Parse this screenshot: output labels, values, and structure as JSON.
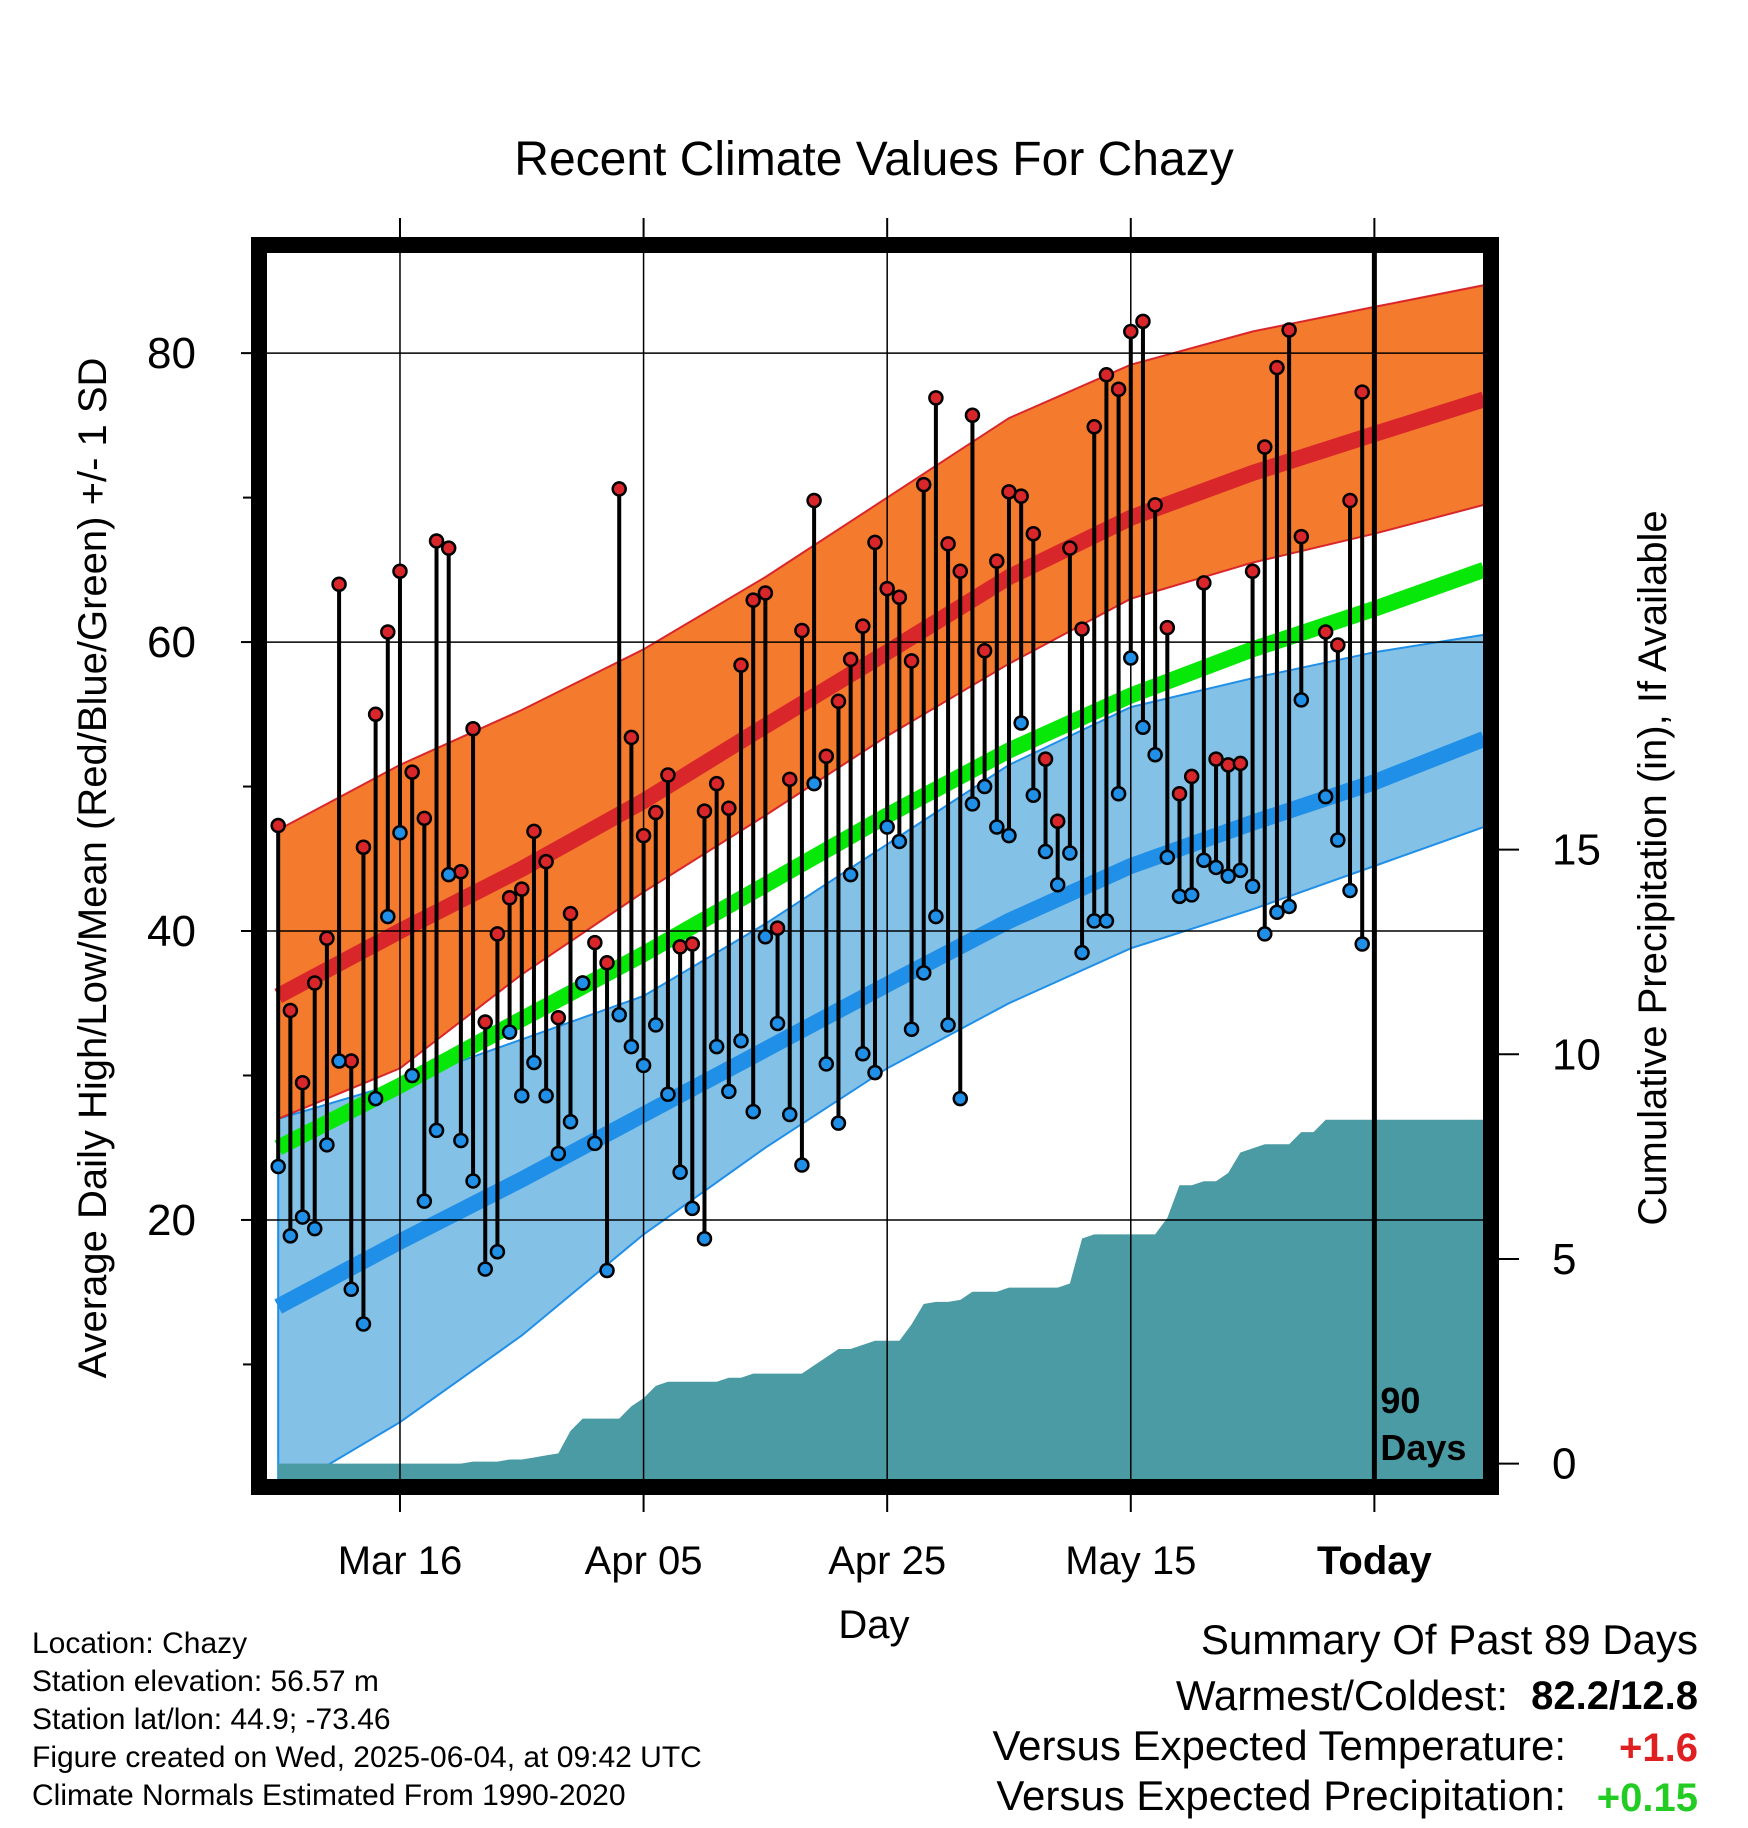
{
  "colors": {
    "high_band": "#f47a2e",
    "high_band_edge": "#d9262a",
    "high_mean": "#d9262a",
    "low_band": "#84c1e6",
    "low_band_edge": "#1f8fe8",
    "low_mean": "#1f8fe8",
    "mean": "#08e808",
    "precip": "#4a9ba4",
    "high_dot": "#d9262a",
    "low_dot": "#1f8fe8",
    "positive_temp": "#e02020",
    "positive_precip": "#22cc22"
  },
  "chart_data": {
    "type": "line",
    "title": "Recent Climate Values For Chazy",
    "xlabel": "Day",
    "ylabel": "Average Daily High/Low/Mean (Red/Blue/Green) +/- 1 SD",
    "y2label": "Cumulative Precipitation (in), If Available",
    "ylim": [
      2,
      87
    ],
    "y2lim": [
      -0.4,
      29.6
    ],
    "yticks": [
      "20",
      "40",
      "60",
      "80"
    ],
    "y2ticks": [
      "0",
      "5",
      "10",
      "15"
    ],
    "x_tick_labels": [
      "Mar 16",
      "Apr 05",
      "Apr 25",
      "May 15",
      "Today"
    ],
    "x_tick_days": [
      10,
      30,
      50,
      70,
      90
    ],
    "xlim": [
      -1,
      99
    ],
    "days_marker": {
      "day": 90,
      "label_line1": "90",
      "label_line2": "Days"
    },
    "normals": {
      "days": [
        0,
        10,
        20,
        30,
        40,
        50,
        60,
        70,
        80,
        90,
        99
      ],
      "high_mean": [
        35.5,
        40.0,
        44.3,
        49.0,
        54.2,
        59.3,
        64.5,
        68.6,
        71.7,
        74.4,
        76.8
      ],
      "high_upper": [
        47.0,
        51.5,
        55.3,
        59.5,
        64.5,
        70.0,
        75.5,
        79.2,
        81.5,
        83.2,
        84.7
      ],
      "high_lower": [
        27.0,
        30.5,
        37.0,
        42.7,
        48.0,
        53.5,
        58.5,
        63.0,
        65.5,
        67.5,
        69.5
      ],
      "low_mean": [
        14.0,
        18.5,
        22.8,
        27.3,
        31.8,
        36.3,
        40.7,
        44.5,
        47.5,
        50.3,
        53.3
      ],
      "low_upper": [
        27.0,
        29.5,
        32.5,
        35.5,
        40.5,
        46.0,
        51.5,
        55.5,
        57.5,
        59.3,
        60.5
      ],
      "low_lower": [
        1.0,
        6.0,
        12.0,
        19.0,
        25.0,
        30.5,
        35.0,
        38.8,
        41.5,
        44.5,
        47.2
      ],
      "mean": [
        25.0,
        29.3,
        33.9,
        38.4,
        43.2,
        48.0,
        52.5,
        56.3,
        59.5,
        62.3,
        65.0
      ]
    },
    "series": [
      {
        "name": "High",
        "values": [
          47.3,
          34.5,
          29.5,
          36.4,
          39.5,
          64.0,
          31.0,
          45.8,
          55.0,
          60.7,
          64.9,
          51.0,
          47.8,
          67.0,
          66.5,
          44.1,
          54.0,
          33.7,
          39.8,
          42.3,
          42.9,
          46.9,
          44.8,
          34.0,
          41.2,
          36.4,
          39.2,
          37.8,
          70.6,
          53.4,
          46.6,
          48.2,
          50.8,
          38.9,
          39.1,
          48.3,
          50.2,
          48.5,
          58.4,
          62.9,
          63.4,
          40.2,
          50.5,
          60.8,
          69.8,
          52.1,
          55.9,
          58.8,
          61.1,
          66.9,
          63.7,
          63.1,
          58.7,
          70.9,
          76.9,
          66.8,
          64.9,
          75.7,
          59.4,
          65.6,
          70.4,
          70.1,
          67.5,
          51.9,
          47.6,
          66.5,
          60.9,
          74.9,
          78.5,
          77.5,
          81.5,
          82.2,
          69.5,
          61.0,
          49.5,
          50.7,
          64.1,
          51.9,
          51.5,
          51.6,
          64.9,
          73.5,
          79.0,
          81.6,
          67.3,
          null,
          60.7,
          59.8,
          69.8,
          77.3
        ]
      },
      {
        "name": "Low",
        "values": [
          23.7,
          18.9,
          20.2,
          19.4,
          25.2,
          31.0,
          15.2,
          12.8,
          28.4,
          41.0,
          46.8,
          30.0,
          21.3,
          26.2,
          43.9,
          25.5,
          22.7,
          16.6,
          17.8,
          33.0,
          28.6,
          30.9,
          28.6,
          24.6,
          26.8,
          36.4,
          25.3,
          16.5,
          34.2,
          32.0,
          30.7,
          33.5,
          28.7,
          23.3,
          20.8,
          18.7,
          32.0,
          28.9,
          32.4,
          27.5,
          39.6,
          33.6,
          27.3,
          23.8,
          50.2,
          30.8,
          26.7,
          43.9,
          31.5,
          30.2,
          47.2,
          46.2,
          33.2,
          37.1,
          41.0,
          33.5,
          28.4,
          48.8,
          50.0,
          47.2,
          46.6,
          54.4,
          49.4,
          45.5,
          43.2,
          45.4,
          38.5,
          40.7,
          40.7,
          49.5,
          58.9,
          54.1,
          52.2,
          45.1,
          42.4,
          42.5,
          44.9,
          44.4,
          43.8,
          44.2,
          43.1,
          39.8,
          41.3,
          41.7,
          56.0,
          null,
          49.3,
          46.3,
          42.8,
          39.1
        ]
      },
      {
        "name": "Cumulative Precipitation",
        "values": [
          0.0,
          0.0,
          0.0,
          0.0,
          0.0,
          0.0,
          0.0,
          0.0,
          0.0,
          0.0,
          0.0,
          0.0,
          0.0,
          0.0,
          0.0,
          0.0,
          0.05,
          0.05,
          0.05,
          0.1,
          0.1,
          0.15,
          0.2,
          0.25,
          0.8,
          1.1,
          1.1,
          1.1,
          1.1,
          1.4,
          1.6,
          1.9,
          2.0,
          2.0,
          2.0,
          2.0,
          2.0,
          2.1,
          2.1,
          2.2,
          2.2,
          2.2,
          2.2,
          2.2,
          2.4,
          2.6,
          2.8,
          2.8,
          2.9,
          3.0,
          3.0,
          3.0,
          3.4,
          3.9,
          3.95,
          3.95,
          4.0,
          4.2,
          4.2,
          4.2,
          4.3,
          4.3,
          4.3,
          4.3,
          4.3,
          4.4,
          5.5,
          5.6,
          5.6,
          5.6,
          5.6,
          5.6,
          5.6,
          6.0,
          6.8,
          6.8,
          6.9,
          6.9,
          7.1,
          7.6,
          7.7,
          7.8,
          7.8,
          7.8,
          8.1,
          8.1,
          8.4,
          8.4,
          8.4,
          8.4,
          8.4,
          8.4,
          8.4,
          8.4,
          8.4,
          8.4,
          8.4,
          8.4,
          8.4,
          8.4
        ]
      }
    ],
    "grid": true,
    "legend": "none"
  },
  "station": {
    "location": "Location: Chazy",
    "elevation": "Station elevation: 56.57 m",
    "latlon": "Station lat/lon: 44.9; -73.46",
    "created": "Figure created on Wed, 2025-06-04, at 09:42 UTC",
    "normals": "Climate Normals Estimated From 1990-2020"
  },
  "summary": {
    "title": "Summary Of Past 89 Days",
    "warmest_coldest_label": "Warmest/Coldest:",
    "warmest_coldest_value": "82.2/12.8",
    "temp_label": "Versus Expected Temperature:",
    "temp_value": "+1.6",
    "precip_label": "Versus Expected Precipitation:",
    "precip_value": "+0.15"
  }
}
